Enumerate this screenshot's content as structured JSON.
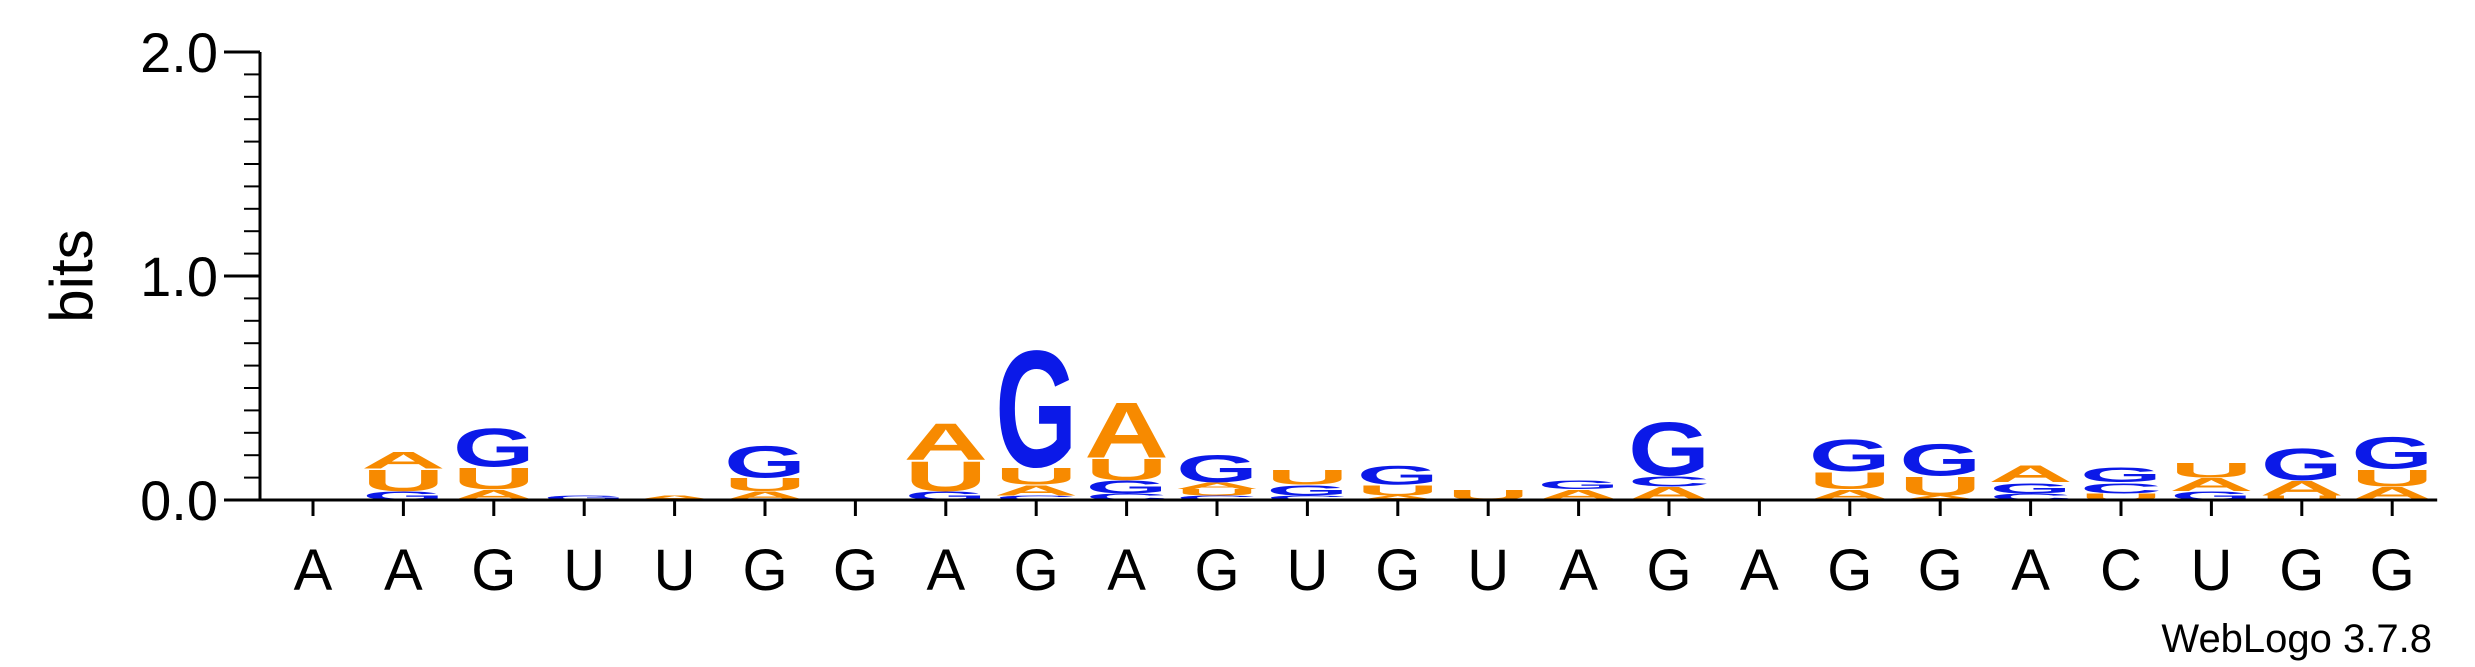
{
  "chart_data": {
    "type": "sequence-logo",
    "ylabel": "bits",
    "ylim": [
      0,
      2.0
    ],
    "yticks": [
      "0.0",
      "1.0",
      "2.0"
    ],
    "credit": "WebLogo 3.7.8",
    "colors": {
      "A": "#F78A00",
      "U": "#F78A00",
      "G": "#0B19E8",
      "C": "#0B19E8"
    },
    "positions": [
      {
        "label": "A",
        "stack": []
      },
      {
        "label": "A",
        "stack": [
          [
            "G",
            0.04
          ],
          [
            "U",
            0.1
          ],
          [
            "A",
            0.08
          ]
        ]
      },
      {
        "label": "G",
        "stack": [
          [
            "A",
            0.05
          ],
          [
            "U",
            0.1
          ],
          [
            "G",
            0.18
          ]
        ]
      },
      {
        "label": "U",
        "stack": [
          [
            "G",
            0.02
          ]
        ]
      },
      {
        "label": "U",
        "stack": [
          [
            "A",
            0.02
          ]
        ]
      },
      {
        "label": "G",
        "stack": [
          [
            "A",
            0.04
          ],
          [
            "U",
            0.06
          ],
          [
            "G",
            0.15
          ]
        ]
      },
      {
        "label": "G",
        "stack": []
      },
      {
        "label": "A",
        "stack": [
          [
            "G",
            0.04
          ],
          [
            "U",
            0.14
          ],
          [
            "A",
            0.17
          ]
        ]
      },
      {
        "label": "G",
        "stack": [
          [
            "C",
            0.02
          ],
          [
            "A",
            0.05
          ],
          [
            "U",
            0.08
          ],
          [
            "G",
            0.55
          ]
        ]
      },
      {
        "label": "A",
        "stack": [
          [
            "C",
            0.03
          ],
          [
            "G",
            0.06
          ],
          [
            "U",
            0.1
          ],
          [
            "A",
            0.26
          ]
        ]
      },
      {
        "label": "G",
        "stack": [
          [
            "C",
            0.02
          ],
          [
            "U",
            0.03
          ],
          [
            "A",
            0.03
          ],
          [
            "G",
            0.13
          ]
        ]
      },
      {
        "label": "U",
        "stack": [
          [
            "C",
            0.02
          ],
          [
            "G",
            0.05
          ],
          [
            "U",
            0.07
          ]
        ]
      },
      {
        "label": "G",
        "stack": [
          [
            "A",
            0.02
          ],
          [
            "U",
            0.05
          ],
          [
            "G",
            0.09
          ]
        ]
      },
      {
        "label": "U",
        "stack": [
          [
            "U",
            0.05
          ]
        ]
      },
      {
        "label": "A",
        "stack": [
          [
            "A",
            0.05
          ],
          [
            "G",
            0.04
          ]
        ]
      },
      {
        "label": "G",
        "stack": [
          [
            "A",
            0.06
          ],
          [
            "C",
            0.05
          ],
          [
            "G",
            0.25
          ]
        ]
      },
      {
        "label": "A",
        "stack": []
      },
      {
        "label": "G",
        "stack": [
          [
            "A",
            0.05
          ],
          [
            "U",
            0.08
          ],
          [
            "G",
            0.15
          ]
        ]
      },
      {
        "label": "G",
        "stack": [
          [
            "A",
            0.02
          ],
          [
            "U",
            0.09
          ],
          [
            "G",
            0.15
          ]
        ]
      },
      {
        "label": "A",
        "stack": [
          [
            "C",
            0.03
          ],
          [
            "G",
            0.05
          ],
          [
            "A",
            0.08
          ]
        ]
      },
      {
        "label": "C",
        "stack": [
          [
            "U",
            0.03
          ],
          [
            "C",
            0.05
          ],
          [
            "G",
            0.07
          ]
        ]
      },
      {
        "label": "U",
        "stack": [
          [
            "G",
            0.04
          ],
          [
            "A",
            0.06
          ],
          [
            "U",
            0.07
          ]
        ]
      },
      {
        "label": "G",
        "stack": [
          [
            "U",
            0.02
          ],
          [
            "A",
            0.07
          ],
          [
            "G",
            0.15
          ]
        ]
      },
      {
        "label": "G",
        "stack": [
          [
            "A",
            0.06
          ],
          [
            "U",
            0.08
          ],
          [
            "G",
            0.15
          ]
        ]
      }
    ]
  }
}
